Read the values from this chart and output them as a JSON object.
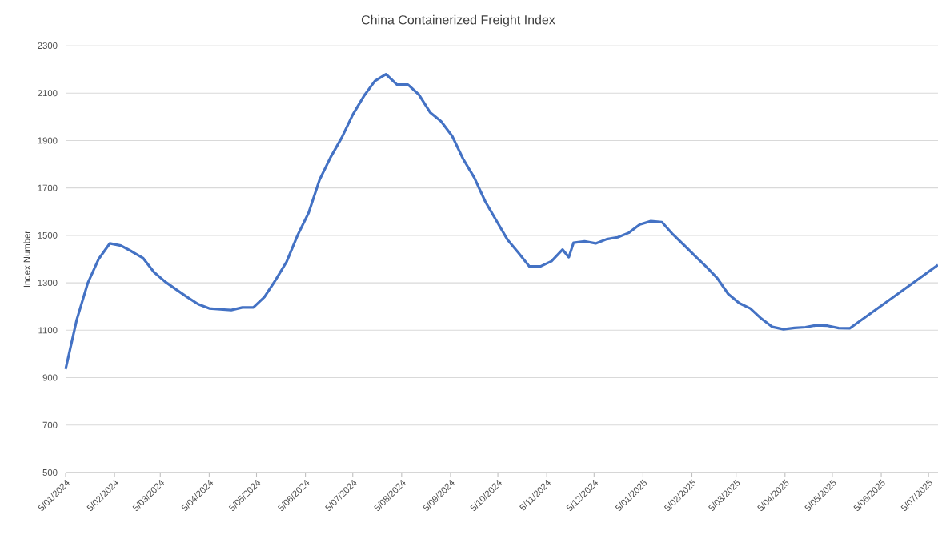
{
  "chart_data": {
    "type": "line",
    "title": "China Containerized Freight Index",
    "ylabel": "Index Number",
    "x": [
      "2024-01-05",
      "2024-01-12",
      "2024-01-19",
      "2024-01-26",
      "2024-02-02",
      "2024-02-09",
      "2024-02-16",
      "2024-02-23",
      "2024-03-01",
      "2024-03-08",
      "2024-03-15",
      "2024-03-22",
      "2024-03-29",
      "2024-04-05",
      "2024-04-12",
      "2024-04-19",
      "2024-04-26",
      "2024-05-03",
      "2024-05-10",
      "2024-05-17",
      "2024-05-24",
      "2024-05-31",
      "2024-06-07",
      "2024-06-14",
      "2024-06-21",
      "2024-06-28",
      "2024-07-05",
      "2024-07-12",
      "2024-07-19",
      "2024-07-26",
      "2024-08-02",
      "2024-08-09",
      "2024-08-16",
      "2024-08-23",
      "2024-08-30",
      "2024-09-06",
      "2024-09-13",
      "2024-09-20",
      "2024-09-27",
      "2024-10-04",
      "2024-10-11",
      "2024-10-18",
      "2024-10-25",
      "2024-11-01",
      "2024-11-08",
      "2024-11-15",
      "2024-11-19",
      "2024-11-22",
      "2024-11-29",
      "2024-12-06",
      "2024-12-13",
      "2024-12-20",
      "2024-12-27",
      "2025-01-03",
      "2025-01-10",
      "2025-01-17",
      "2025-01-24",
      "2025-01-31",
      "2025-02-07",
      "2025-02-14",
      "2025-02-21",
      "2025-02-28",
      "2025-03-07",
      "2025-03-14",
      "2025-03-21",
      "2025-03-28",
      "2025-04-04",
      "2025-04-11",
      "2025-04-18",
      "2025-04-25",
      "2025-05-02",
      "2025-05-09",
      "2025-05-16",
      "2025-06-13",
      "2025-07-11"
    ],
    "series": [
      {
        "color": "#4472c4",
        "values": [
          936,
          1143,
          1298,
          1401,
          1466,
          1457,
          1432,
          1405,
          1345,
          1305,
          1272,
          1240,
          1210,
          1192,
          1188,
          1185,
          1196,
          1196,
          1240,
          1311,
          1388,
          1500,
          1595,
          1735,
          1830,
          1912,
          2009,
          2087,
          2151,
          2180,
          2136,
          2136,
          2093,
          2019,
          1981,
          1919,
          1822,
          1744,
          1643,
          1563,
          1483,
          1427,
          1369,
          1369,
          1391,
          1440,
          1408,
          1469,
          1475,
          1466,
          1484,
          1492,
          1511,
          1546,
          1560,
          1556,
          1504,
          1459,
          1413,
          1368,
          1320,
          1253,
          1214,
          1192,
          1149,
          1114,
          1104,
          1110,
          1113,
          1121,
          1119,
          1109,
          1108,
          1241,
          1375
        ]
      }
    ],
    "xlim": [
      "2024-01-05",
      "2025-07-11"
    ],
    "xticks": [
      {
        "value": "2024-01-05",
        "label": "5/01/2024"
      },
      {
        "value": "2024-02-05",
        "label": "5/02/2024"
      },
      {
        "value": "2024-03-05",
        "label": "5/03/2024"
      },
      {
        "value": "2024-04-05",
        "label": "5/04/2024"
      },
      {
        "value": "2024-05-05",
        "label": "5/05/2024"
      },
      {
        "value": "2024-06-05",
        "label": "5/06/2024"
      },
      {
        "value": "2024-07-05",
        "label": "5/07/2024"
      },
      {
        "value": "2024-08-05",
        "label": "5/08/2024"
      },
      {
        "value": "2024-09-05",
        "label": "5/09/2024"
      },
      {
        "value": "2024-10-05",
        "label": "5/10/2024"
      },
      {
        "value": "2024-11-05",
        "label": "5/11/2024"
      },
      {
        "value": "2024-12-05",
        "label": "5/12/2024"
      },
      {
        "value": "2025-01-05",
        "label": "5/01/2025"
      },
      {
        "value": "2025-02-05",
        "label": "5/02/2025"
      },
      {
        "value": "2025-03-05",
        "label": "5/03/2025"
      },
      {
        "value": "2025-04-05",
        "label": "5/04/2025"
      },
      {
        "value": "2025-05-05",
        "label": "5/05/2025"
      },
      {
        "value": "2025-06-05",
        "label": "5/06/2025"
      },
      {
        "value": "2025-07-05",
        "label": "5/07/2025"
      }
    ],
    "ylim": [
      500,
      2300
    ],
    "yticks": [
      500,
      700,
      900,
      1100,
      1300,
      1500,
      1700,
      1900,
      2100,
      2300
    ],
    "grid": "y",
    "marker": "none",
    "line_style": "solid"
  }
}
